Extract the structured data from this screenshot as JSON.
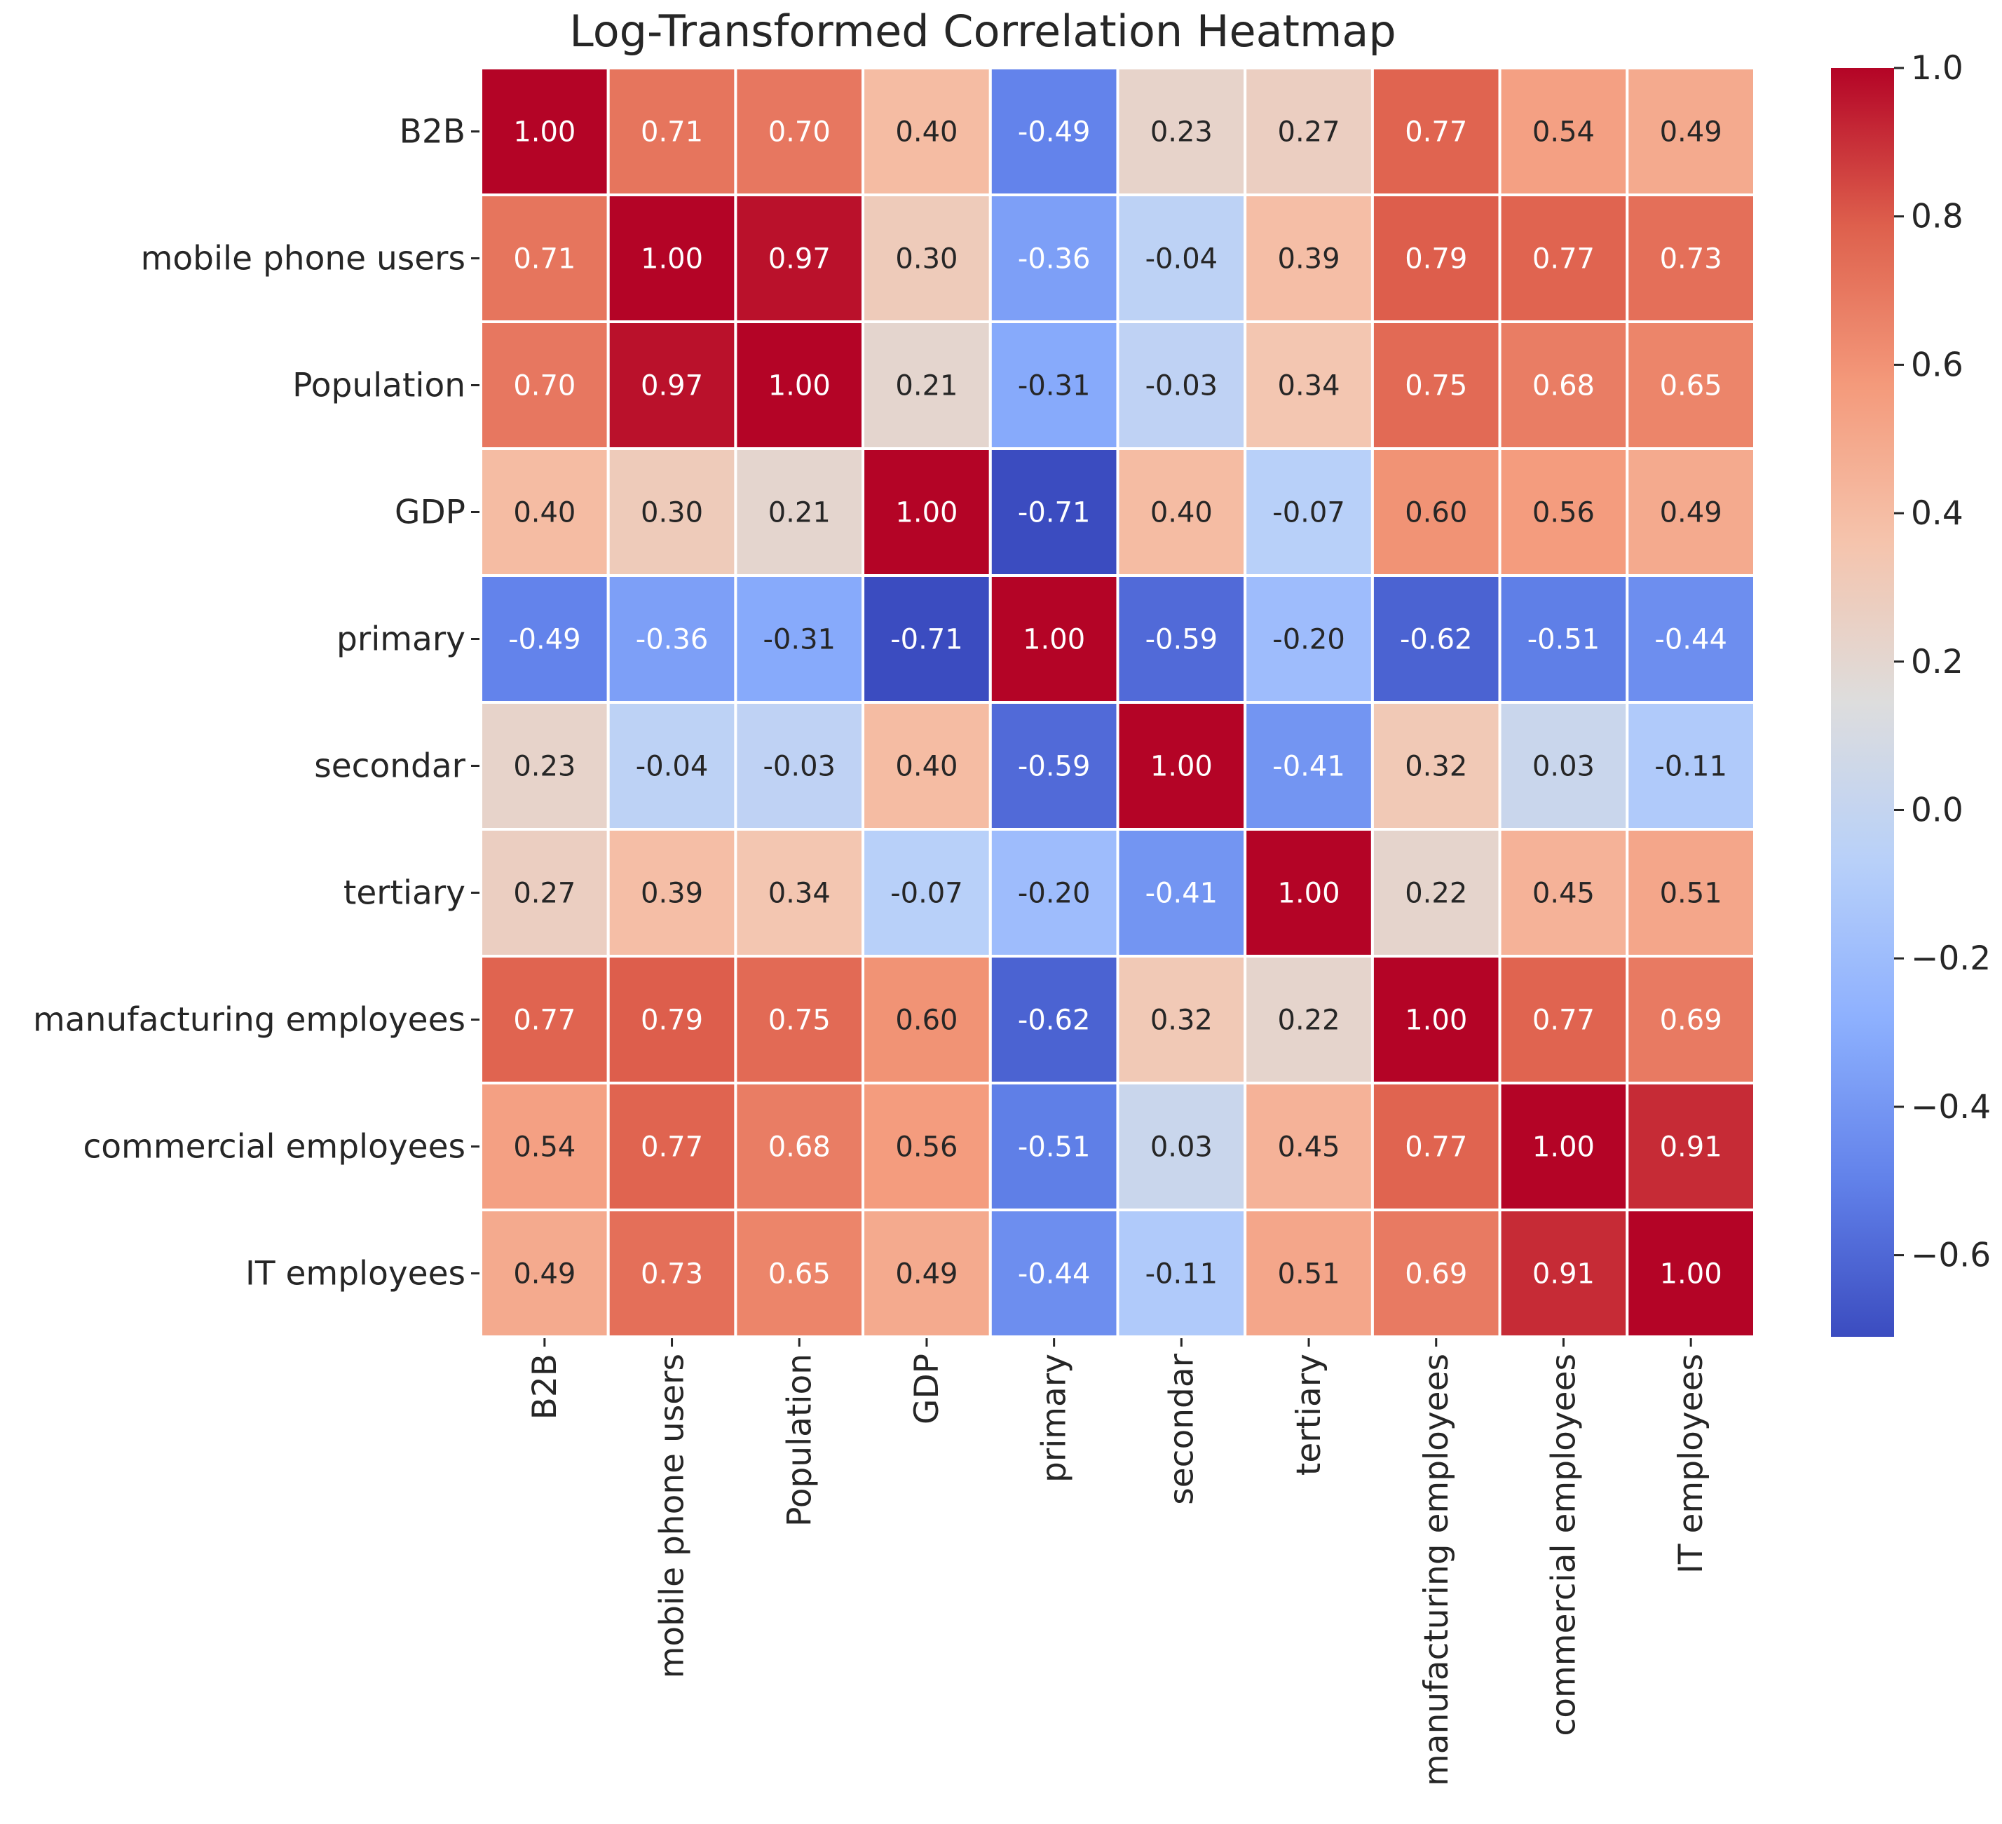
{
  "chart_data": {
    "type": "heatmap",
    "title": "Log-Transformed Correlation Heatmap",
    "xlabel": "",
    "ylabel": "",
    "labels": [
      "B2B",
      "mobile phone users",
      "Population",
      "GDP",
      "primary",
      "secondar",
      "tertiary",
      "manufacturing employees",
      "commercial employees",
      "IT employees"
    ],
    "matrix": [
      [
        1.0,
        0.71,
        0.7,
        0.4,
        -0.49,
        0.23,
        0.27,
        0.77,
        0.54,
        0.49
      ],
      [
        0.71,
        1.0,
        0.97,
        0.3,
        -0.36,
        -0.04,
        0.39,
        0.79,
        0.77,
        0.73
      ],
      [
        0.7,
        0.97,
        1.0,
        0.21,
        -0.31,
        -0.03,
        0.34,
        0.75,
        0.68,
        0.65
      ],
      [
        0.4,
        0.3,
        0.21,
        1.0,
        -0.71,
        0.4,
        -0.07,
        0.6,
        0.56,
        0.49
      ],
      [
        -0.49,
        -0.36,
        -0.31,
        -0.71,
        1.0,
        -0.59,
        -0.2,
        -0.62,
        -0.51,
        -0.44
      ],
      [
        0.23,
        -0.04,
        -0.03,
        0.4,
        -0.59,
        1.0,
        -0.41,
        0.32,
        0.03,
        -0.11
      ],
      [
        0.27,
        0.39,
        0.34,
        -0.07,
        -0.2,
        -0.41,
        1.0,
        0.22,
        0.45,
        0.51
      ],
      [
        0.77,
        0.79,
        0.75,
        0.6,
        -0.62,
        0.32,
        0.22,
        1.0,
        0.77,
        0.69
      ],
      [
        0.54,
        0.77,
        0.68,
        0.56,
        -0.51,
        0.03,
        0.45,
        0.77,
        1.0,
        0.91
      ],
      [
        0.49,
        0.73,
        0.65,
        0.49,
        -0.44,
        -0.11,
        0.51,
        0.69,
        0.91,
        1.0
      ]
    ],
    "value_format": "2 decimals",
    "colormap": "coolwarm",
    "vmin": -0.71,
    "vmax": 1.0,
    "colorbar": {
      "ticks": [
        1.0,
        0.8,
        0.6,
        0.4,
        0.2,
        0.0,
        -0.2,
        -0.4,
        -0.6
      ],
      "tick_labels": [
        "1.0",
        "0.8",
        "0.6",
        "0.4",
        "0.2",
        "0.0",
        "−0.2",
        "−0.4",
        "−0.6"
      ]
    },
    "grid": true,
    "legend": "colorbar-right"
  }
}
